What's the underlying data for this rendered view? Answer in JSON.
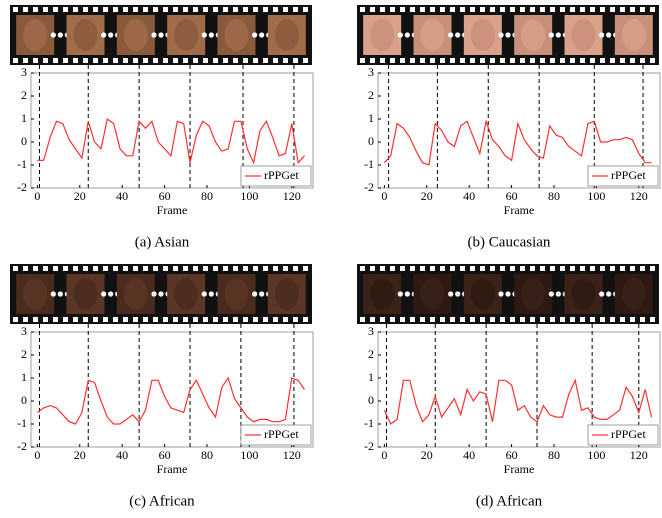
{
  "chart_data": [
    {
      "type": "line",
      "caption": "(a) Asian",
      "xlabel": "Frame",
      "xlim": [
        -3,
        130
      ],
      "ylim": [
        -2,
        3
      ],
      "xticks": [
        0,
        20,
        40,
        60,
        80,
        100,
        120
      ],
      "yticks": [
        -2,
        -1,
        0,
        1,
        2,
        3
      ],
      "vlines": [
        1,
        24,
        48,
        72,
        97,
        121
      ],
      "legend": "lower right",
      "x": [
        0,
        3,
        6,
        9,
        12,
        15,
        18,
        21,
        24,
        27,
        30,
        33,
        36,
        39,
        42,
        45,
        48,
        51,
        54,
        57,
        60,
        63,
        66,
        69,
        72,
        75,
        78,
        81,
        84,
        87,
        90,
        93,
        96,
        99,
        102,
        105,
        108,
        111,
        114,
        117,
        120,
        123,
        126
      ],
      "series": [
        {
          "name": "rPPGet",
          "color": "#ff3030",
          "values": [
            -0.8,
            -0.8,
            0.2,
            0.9,
            0.8,
            0.1,
            -0.3,
            -0.7,
            0.9,
            0.0,
            -0.3,
            1.0,
            0.8,
            -0.3,
            -0.6,
            -0.6,
            0.9,
            0.6,
            0.9,
            0.0,
            -0.3,
            -0.6,
            0.9,
            0.8,
            -0.9,
            0.3,
            0.9,
            0.7,
            0.0,
            -0.4,
            -0.3,
            0.9,
            0.9,
            -0.3,
            -0.9,
            0.5,
            0.9,
            0.2,
            -0.6,
            -0.5,
            0.8,
            -0.9,
            -0.6
          ]
        }
      ]
    },
    {
      "type": "line",
      "caption": "(b) Caucasian",
      "xlabel": "Frame",
      "xlim": [
        -3,
        130
      ],
      "ylim": [
        -2,
        3
      ],
      "xticks": [
        0,
        20,
        40,
        60,
        80,
        100,
        120
      ],
      "yticks": [
        -2,
        -1,
        0,
        1,
        2,
        3
      ],
      "vlines": [
        2,
        25,
        49,
        73,
        99,
        122
      ],
      "legend": "lower right",
      "x": [
        0,
        3,
        6,
        9,
        12,
        15,
        18,
        21,
        24,
        27,
        30,
        33,
        36,
        39,
        42,
        45,
        48,
        51,
        54,
        57,
        60,
        63,
        66,
        69,
        72,
        75,
        78,
        81,
        84,
        87,
        90,
        93,
        96,
        99,
        102,
        105,
        108,
        111,
        114,
        117,
        120,
        123,
        126
      ],
      "series": [
        {
          "name": "rPPGet",
          "color": "#ff3030",
          "values": [
            -0.9,
            -0.6,
            0.8,
            0.6,
            0.2,
            -0.4,
            -0.9,
            -1.0,
            0.8,
            0.5,
            0.0,
            -0.2,
            0.7,
            0.9,
            0.2,
            -0.5,
            0.9,
            0.1,
            -0.2,
            -0.6,
            -0.8,
            0.8,
            0.1,
            -0.3,
            -0.6,
            -0.7,
            0.7,
            0.3,
            0.2,
            -0.2,
            -0.4,
            -0.6,
            0.8,
            0.9,
            0.0,
            0.0,
            0.1,
            0.1,
            0.2,
            0.1,
            -0.5,
            -0.9,
            -0.9
          ]
        }
      ]
    },
    {
      "type": "line",
      "caption": "(c) African",
      "xlabel": "Frame",
      "xlim": [
        -3,
        130
      ],
      "ylim": [
        -2,
        3
      ],
      "xticks": [
        0,
        20,
        40,
        60,
        80,
        100,
        120
      ],
      "yticks": [
        -2,
        -1,
        0,
        1,
        2,
        3
      ],
      "vlines": [
        1,
        24,
        48,
        72,
        96,
        121
      ],
      "legend": "lower right",
      "x": [
        0,
        3,
        6,
        9,
        12,
        15,
        18,
        21,
        24,
        27,
        30,
        33,
        36,
        39,
        42,
        45,
        48,
        51,
        54,
        57,
        60,
        63,
        66,
        69,
        72,
        75,
        78,
        81,
        84,
        87,
        90,
        93,
        96,
        99,
        102,
        105,
        108,
        111,
        114,
        117,
        120,
        123,
        126
      ],
      "series": [
        {
          "name": "rPPGet",
          "color": "#ff3030",
          "values": [
            -0.5,
            -0.3,
            -0.2,
            -0.3,
            -0.6,
            -0.9,
            -1.0,
            -0.5,
            0.9,
            0.8,
            0.0,
            -0.7,
            -1.0,
            -1.0,
            -0.8,
            -0.6,
            -0.9,
            -0.4,
            0.9,
            0.9,
            0.2,
            -0.3,
            -0.4,
            -0.5,
            0.5,
            0.9,
            0.3,
            -0.3,
            -0.7,
            0.6,
            1.0,
            0.1,
            -0.3,
            -0.7,
            -0.9,
            -0.8,
            -0.8,
            -0.9,
            -0.9,
            -0.8,
            1.0,
            0.9,
            0.5
          ]
        }
      ]
    },
    {
      "type": "line",
      "caption": "(d) African",
      "xlabel": "Frame",
      "xlim": [
        -3,
        130
      ],
      "ylim": [
        -2,
        3
      ],
      "xticks": [
        0,
        20,
        40,
        60,
        80,
        100,
        120
      ],
      "yticks": [
        -2,
        -1,
        0,
        1,
        2,
        3
      ],
      "vlines": [
        1,
        24,
        48,
        72,
        98,
        120
      ],
      "legend": "lower right",
      "x": [
        0,
        3,
        6,
        9,
        12,
        15,
        18,
        21,
        24,
        27,
        30,
        33,
        36,
        39,
        42,
        45,
        48,
        51,
        54,
        57,
        60,
        63,
        66,
        69,
        72,
        75,
        78,
        81,
        84,
        87,
        90,
        93,
        96,
        99,
        102,
        105,
        108,
        111,
        114,
        117,
        120,
        123,
        126
      ],
      "series": [
        {
          "name": "rPPGet",
          "color": "#ff3030",
          "values": [
            -0.4,
            -1.0,
            -0.8,
            0.9,
            0.9,
            -0.2,
            -0.9,
            -0.6,
            0.2,
            -0.7,
            -0.3,
            0.1,
            -0.6,
            0.5,
            0.0,
            0.4,
            0.3,
            -0.9,
            0.9,
            0.9,
            0.7,
            -0.4,
            -0.2,
            -0.7,
            -0.9,
            -0.2,
            -0.6,
            -0.7,
            -0.7,
            0.3,
            0.9,
            -0.4,
            -0.3,
            -0.7,
            -0.8,
            -0.8,
            -0.6,
            -0.4,
            0.6,
            0.2,
            -0.5,
            0.5,
            -0.7
          ]
        }
      ]
    }
  ]
}
